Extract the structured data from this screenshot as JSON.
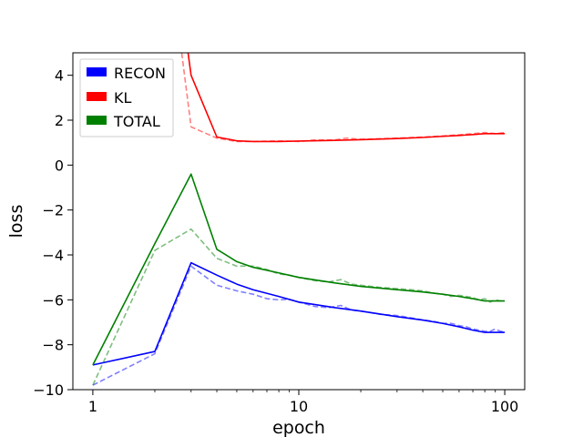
{
  "chart_data": {
    "type": "line",
    "title": "",
    "xlabel": "epoch",
    "ylabel": "loss",
    "xscale": "log",
    "xlim": [
      0.8,
      125
    ],
    "ylim": [
      -10,
      5
    ],
    "xticks": [
      {
        "value": 1,
        "label": "1"
      },
      {
        "value": 10,
        "label": "10"
      },
      {
        "value": 100,
        "label": "100"
      }
    ],
    "yticks": [
      {
        "value": -10,
        "label": "−10"
      },
      {
        "value": -8,
        "label": "−8"
      },
      {
        "value": -6,
        "label": "−6"
      },
      {
        "value": -4,
        "label": "−4"
      },
      {
        "value": -2,
        "label": "−2"
      },
      {
        "value": 0,
        "label": "0"
      },
      {
        "value": 2,
        "label": "2"
      },
      {
        "value": 4,
        "label": "4"
      }
    ],
    "grid": false,
    "legend_position": "top-left",
    "legend": [
      {
        "label": "RECON",
        "color": "#0000ff"
      },
      {
        "label": "KL",
        "color": "#ff0000"
      },
      {
        "label": "TOTAL",
        "color": "#008000"
      }
    ],
    "series": [
      {
        "name": "RECON",
        "style": "solid",
        "color": "#0000ff",
        "opacity": 1,
        "x": [
          1,
          2,
          3,
          4,
          5,
          6,
          8,
          10,
          15,
          20,
          30,
          40,
          50,
          60,
          70,
          80,
          100
        ],
        "y": [
          -8.9,
          -8.3,
          -4.35,
          -4.9,
          -5.3,
          -5.55,
          -5.85,
          -6.1,
          -6.35,
          -6.5,
          -6.75,
          -6.9,
          -7.05,
          -7.2,
          -7.35,
          -7.45,
          -7.45
        ]
      },
      {
        "name": "KL",
        "style": "solid",
        "color": "#ff0000",
        "opacity": 1,
        "x": [
          2.9,
          3,
          4,
          5,
          6,
          8,
          10,
          15,
          20,
          30,
          40,
          50,
          60,
          70,
          80,
          100
        ],
        "y": [
          5.0,
          4.0,
          1.25,
          1.08,
          1.05,
          1.05,
          1.07,
          1.1,
          1.13,
          1.18,
          1.23,
          1.28,
          1.32,
          1.36,
          1.4,
          1.4
        ]
      },
      {
        "name": "TOTAL",
        "style": "solid",
        "color": "#008000",
        "opacity": 1,
        "x": [
          1,
          2,
          3,
          4,
          5,
          6,
          8,
          10,
          15,
          20,
          30,
          40,
          50,
          60,
          70,
          80,
          100
        ],
        "y": [
          -8.9,
          -3.5,
          -0.4,
          -3.75,
          -4.3,
          -4.55,
          -4.8,
          -5.0,
          -5.25,
          -5.4,
          -5.55,
          -5.65,
          -5.75,
          -5.85,
          -5.95,
          -6.05,
          -6.05
        ]
      },
      {
        "name": "",
        "style": "dashed",
        "color": "#0000ff",
        "opacity": 0.5,
        "x": [
          1,
          2,
          3,
          4,
          5,
          6,
          7,
          8,
          9,
          10,
          12,
          14,
          16,
          18,
          20,
          25,
          30,
          35,
          40,
          45,
          50,
          55,
          60,
          65,
          70,
          75,
          80,
          85,
          90,
          95,
          100
        ],
        "y": [
          -9.8,
          -8.4,
          -4.5,
          -5.35,
          -5.6,
          -5.75,
          -5.95,
          -6.0,
          -5.98,
          -6.1,
          -6.3,
          -6.35,
          -6.25,
          -6.45,
          -6.5,
          -6.65,
          -6.7,
          -6.8,
          -6.9,
          -6.95,
          -7.05,
          -7.05,
          -7.15,
          -7.2,
          -7.3,
          -7.35,
          -7.4,
          -7.4,
          -7.3,
          -7.4,
          -7.4
        ]
      },
      {
        "name": "",
        "style": "dashed",
        "color": "#ff0000",
        "opacity": 0.5,
        "x": [
          2.7,
          3,
          4,
          5,
          6,
          8,
          10,
          12,
          15,
          17,
          20,
          30,
          40,
          50,
          60,
          70,
          80,
          90,
          100
        ],
        "y": [
          5.0,
          1.7,
          1.2,
          1.05,
          1.05,
          1.08,
          1.05,
          1.12,
          1.12,
          1.2,
          1.15,
          1.2,
          1.25,
          1.3,
          1.35,
          1.4,
          1.45,
          1.4,
          1.45
        ]
      },
      {
        "name": "",
        "style": "dashed",
        "color": "#008000",
        "opacity": 0.5,
        "x": [
          1,
          2,
          3,
          4,
          5,
          6,
          7,
          8,
          9,
          10,
          12,
          14,
          16,
          18,
          20,
          25,
          30,
          35,
          40,
          45,
          50,
          55,
          60,
          65,
          70,
          75,
          80,
          85,
          90,
          95,
          100
        ],
        "y": [
          -9.8,
          -3.8,
          -2.85,
          -4.15,
          -4.5,
          -4.5,
          -4.65,
          -4.85,
          -4.9,
          -5.0,
          -5.15,
          -5.2,
          -5.1,
          -5.3,
          -5.35,
          -5.45,
          -5.5,
          -5.55,
          -5.6,
          -5.7,
          -5.75,
          -5.85,
          -5.8,
          -5.85,
          -5.9,
          -6.0,
          -5.95,
          -6.1,
          -6.0,
          -6.05,
          -6.05
        ]
      }
    ]
  }
}
